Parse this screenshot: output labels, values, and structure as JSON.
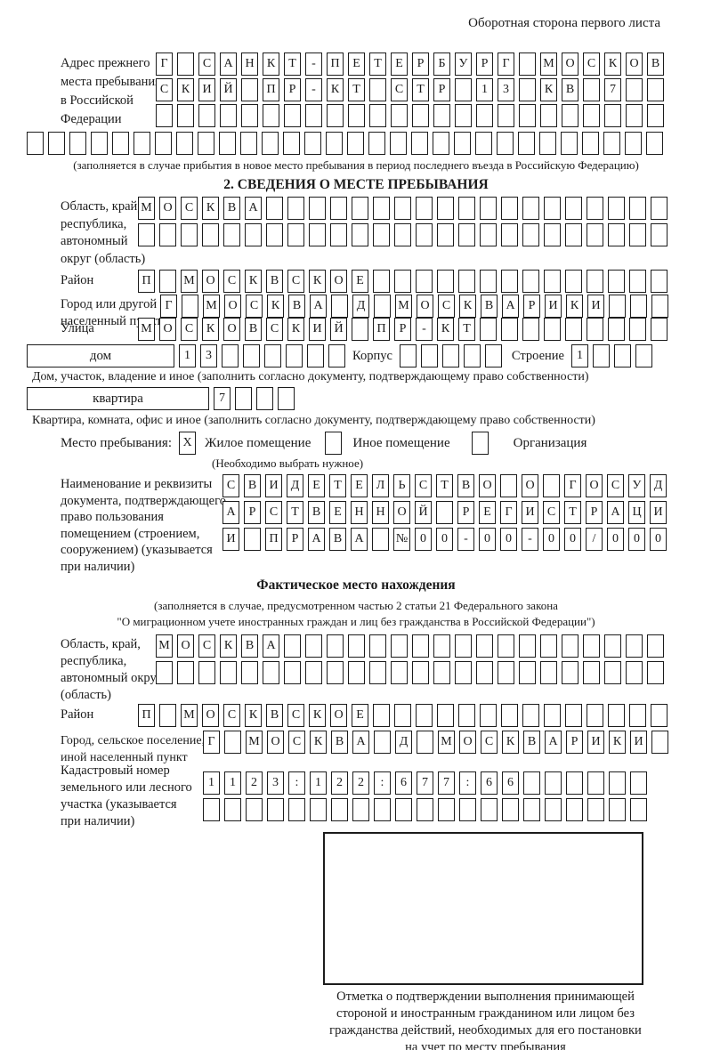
{
  "colors": {
    "ink": "#1b1b1b",
    "paper": "#ffffff"
  },
  "header": {
    "right_note": "Оборотная сторона первого листа"
  },
  "prev_address": {
    "label_lines": [
      "Адрес прежнего",
      "места пребывания",
      "в Российской",
      "Федерации"
    ],
    "row1": [
      "Г",
      "",
      "С",
      "А",
      "Н",
      "К",
      "Т",
      "-",
      "П",
      "Е",
      "Т",
      "Е",
      "Р",
      "Б",
      "У",
      "Р",
      "Г",
      "",
      "М",
      "О",
      "С",
      "К",
      "О",
      "В"
    ],
    "row2": [
      "С",
      "К",
      "И",
      "Й",
      "",
      "П",
      "Р",
      "-",
      "К",
      "Т",
      "",
      "С",
      "Т",
      "Р",
      "",
      "1",
      "3",
      "",
      "К",
      "В",
      "",
      "7",
      "",
      ""
    ],
    "row3": [
      "",
      "",
      "",
      "",
      "",
      "",
      "",
      "",
      "",
      "",
      "",
      "",
      "",
      "",
      "",
      "",
      "",
      "",
      "",
      "",
      "",
      "",
      "",
      ""
    ],
    "row4": [
      "",
      "",
      "",
      "",
      "",
      "",
      "",
      "",
      "",
      "",
      "",
      "",
      "",
      "",
      "",
      "",
      "",
      "",
      "",
      "",
      "",
      "",
      "",
      "",
      "",
      "",
      "",
      "",
      "",
      ""
    ],
    "note": "(заполняется в случае прибытия в новое место пребывания в период последнего въезда в Российскую Федерацию)"
  },
  "section2": {
    "title": "2. СВЕДЕНИЯ О МЕСТЕ ПРЕБЫВАНИЯ",
    "oblast": {
      "label_lines": [
        "Область, край,",
        "республика,",
        "автономный",
        "округ (область)"
      ],
      "row1": [
        "М",
        "О",
        "С",
        "К",
        "В",
        "А",
        "",
        "",
        "",
        "",
        "",
        "",
        "",
        "",
        "",
        "",
        "",
        "",
        "",
        "",
        "",
        "",
        "",
        "",
        ""
      ],
      "row2": [
        "",
        "",
        "",
        "",
        "",
        "",
        "",
        "",
        "",
        "",
        "",
        "",
        "",
        "",
        "",
        "",
        "",
        "",
        "",
        "",
        "",
        "",
        "",
        "",
        ""
      ]
    },
    "raion": {
      "label": "Район",
      "row": [
        "П",
        "",
        "М",
        "О",
        "С",
        "К",
        "В",
        "С",
        "К",
        "О",
        "Е",
        "",
        "",
        "",
        "",
        "",
        "",
        "",
        "",
        "",
        "",
        "",
        "",
        "",
        ""
      ]
    },
    "gorod": {
      "label_lines": [
        "Город или другой",
        "населенный пункт"
      ],
      "row": [
        "Г",
        "",
        "М",
        "О",
        "С",
        "К",
        "В",
        "А",
        "",
        "Д",
        "",
        "М",
        "О",
        "С",
        "К",
        "В",
        "А",
        "Р",
        "И",
        "К",
        "И",
        "",
        "",
        ""
      ]
    },
    "ulitsa": {
      "label": "Улица",
      "row": [
        "М",
        "О",
        "С",
        "К",
        "О",
        "В",
        "С",
        "К",
        "И",
        "Й",
        "",
        "П",
        "Р",
        "-",
        "К",
        "Т",
        "",
        "",
        "",
        "",
        "",
        "",
        "",
        "",
        ""
      ]
    },
    "dom": {
      "box_label": "дом",
      "cells": [
        "1",
        "3",
        "",
        "",
        "",
        "",
        "",
        ""
      ],
      "korpus_label": "Корпус",
      "korpus_cells": [
        "",
        "",
        "",
        "",
        ""
      ],
      "stroenie_label": "Строение",
      "stroenie_cells": [
        "1",
        "",
        "",
        ""
      ],
      "note": "Дом, участок, владение и иное (заполнить согласно документу, подтверждающему право собственности)"
    },
    "kvartira": {
      "box_label": "квартира",
      "cells": [
        "7",
        "",
        "",
        ""
      ],
      "note": "Квартира, комната, офис и иное (заполнить согласно документу, подтверждающему право собственности)"
    },
    "mesto": {
      "label": "Место пребывания:",
      "options": [
        {
          "mark": "X",
          "label": "Жилое помещение"
        },
        {
          "mark": "",
          "label": "Иное помещение"
        },
        {
          "mark": "",
          "label": "Организация"
        }
      ],
      "note": "(Необходимо выбрать нужное)"
    },
    "document": {
      "label_lines": [
        "Наименование и реквизиты",
        "документа, подтверждающего",
        "право пользования",
        "помещением (строением,",
        "сооружением) (указывается",
        "при наличии)"
      ],
      "row1": [
        "С",
        "В",
        "И",
        "Д",
        "Е",
        "Т",
        "Е",
        "Л",
        "Ь",
        "С",
        "Т",
        "В",
        "О",
        "",
        "О",
        "",
        "Г",
        "О",
        "С",
        "У",
        "Д"
      ],
      "row2": [
        "А",
        "Р",
        "С",
        "Т",
        "В",
        "Е",
        "Н",
        "Н",
        "О",
        "Й",
        "",
        "Р",
        "Е",
        "Г",
        "И",
        "С",
        "Т",
        "Р",
        "А",
        "Ц",
        "И"
      ],
      "row3": [
        "И",
        "",
        "П",
        "Р",
        "А",
        "В",
        "А",
        "",
        "№",
        "0",
        "0",
        "-",
        "0",
        "0",
        "-",
        "0",
        "0",
        "/",
        "0",
        "0",
        "0"
      ]
    }
  },
  "actual": {
    "title": "Фактическое место нахождения",
    "note_lines": [
      "(заполняется в случае, предусмотренном частью 2 статьи 21 Федерального закона",
      "\"О миграционном учете иностранных граждан и лиц без гражданства в Российской Федерации\")"
    ],
    "oblast": {
      "label_lines": [
        "Область, край,",
        "республика,",
        "автономный округ",
        "(область)"
      ],
      "row1": [
        "М",
        "О",
        "С",
        "К",
        "В",
        "А",
        "",
        "",
        "",
        "",
        "",
        "",
        "",
        "",
        "",
        "",
        "",
        "",
        "",
        "",
        "",
        "",
        "",
        ""
      ],
      "row2": [
        "",
        "",
        "",
        "",
        "",
        "",
        "",
        "",
        "",
        "",
        "",
        "",
        "",
        "",
        "",
        "",
        "",
        "",
        "",
        "",
        "",
        "",
        "",
        ""
      ]
    },
    "raion": {
      "label": "Район",
      "row": [
        "П",
        "",
        "М",
        "О",
        "С",
        "К",
        "В",
        "С",
        "К",
        "О",
        "Е",
        "",
        "",
        "",
        "",
        "",
        "",
        "",
        "",
        "",
        "",
        "",
        "",
        "",
        ""
      ]
    },
    "gorod": {
      "label_lines": [
        "Город, сельское поселение,",
        "иной населенный пункт"
      ],
      "row": [
        "Г",
        "",
        "М",
        "О",
        "С",
        "К",
        "В",
        "А",
        "",
        "Д",
        "",
        "М",
        "О",
        "С",
        "К",
        "В",
        "А",
        "Р",
        "И",
        "К",
        "И",
        ""
      ]
    },
    "cadastre": {
      "label_lines": [
        "Кадастровый номер",
        "земельного или лесного",
        "участка (указывается",
        "при наличии)"
      ],
      "row1": [
        "1",
        "1",
        "2",
        "3",
        ":",
        "1",
        "2",
        "2",
        ":",
        "6",
        "7",
        "7",
        ":",
        "6",
        "6",
        "",
        "",
        "",
        "",
        "",
        ""
      ],
      "row2": [
        "",
        "",
        "",
        "",
        "",
        "",
        "",
        "",
        "",
        "",
        "",
        "",
        "",
        "",
        "",
        "",
        "",
        "",
        "",
        "",
        ""
      ]
    },
    "stamp_caption_lines": [
      "Отметка о подтверждении выполнения принимающей",
      "стороной и иностранным гражданином или лицом без",
      "гражданства действий, необходимых для его постановки",
      "на учет по месту пребывания"
    ]
  }
}
